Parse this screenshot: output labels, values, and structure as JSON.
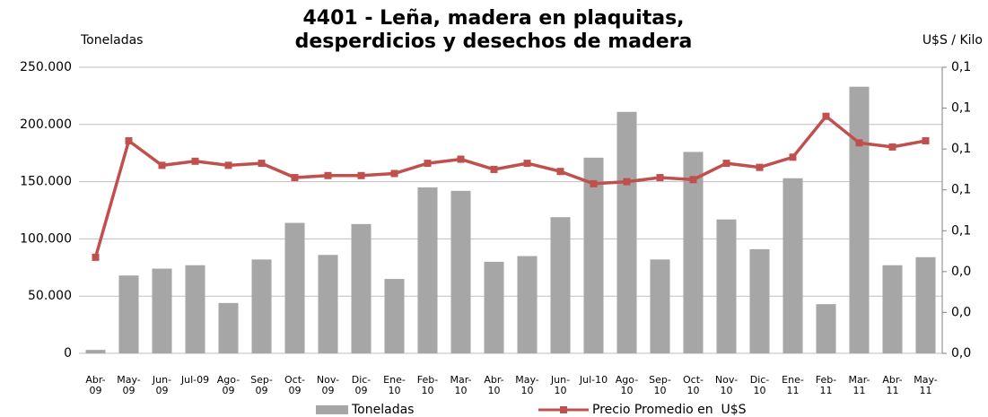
{
  "chart_data": {
    "type": "bar",
    "title": "4401 - Leña, madera en plaquitas, desperdicios y desechos de madera",
    "y_label": "Toneladas",
    "y2_label": "U$S / Kilo",
    "categories": [
      "Abr-09",
      "May-09",
      "Jun-09",
      "Jul-09",
      "Ago-09",
      "Sep-09",
      "Oct-09",
      "Nov-09",
      "Dic-09",
      "Ene-10",
      "Feb-10",
      "Mar-10",
      "Abr-10",
      "May-10",
      "Jun-10",
      "Jul-10",
      "Ago-10",
      "Sep-10",
      "Oct-10",
      "Nov-10",
      "Dic-10",
      "Ene-11",
      "Feb-11",
      "Mar-11",
      "Abr-11",
      "May-11"
    ],
    "series": [
      {
        "name": "Toneladas",
        "type": "bar",
        "color": "#a6a6a6",
        "values": [
          3000,
          68000,
          74000,
          77000,
          44000,
          82000,
          114000,
          86000,
          113000,
          65000,
          145000,
          142000,
          80000,
          85000,
          119000,
          171000,
          211000,
          82000,
          176000,
          117000,
          91000,
          153000,
          43000,
          233000,
          77000,
          84000
        ]
      },
      {
        "name": "Precio Promedio en  U$S",
        "type": "line",
        "axis": "y2",
        "color": "#c0504d",
        "values": [
          0.047,
          0.104,
          0.092,
          0.094,
          0.092,
          0.093,
          0.086,
          0.087,
          0.087,
          0.088,
          0.093,
          0.095,
          0.09,
          0.093,
          0.089,
          0.083,
          0.084,
          0.086,
          0.085,
          0.093,
          0.091,
          0.096,
          0.116,
          0.103,
          0.101,
          0.104
        ]
      }
    ],
    "ylim": [
      0,
      250000
    ],
    "yticks": [
      {
        "value": 0,
        "label": "0"
      },
      {
        "value": 50000,
        "label": "50.000"
      },
      {
        "value": 100000,
        "label": "100.000"
      },
      {
        "value": 150000,
        "label": "150.000"
      },
      {
        "value": 200000,
        "label": "200.000"
      },
      {
        "value": 250000,
        "label": "250.000"
      }
    ],
    "y2lim": [
      0,
      0.14
    ],
    "y2ticks": [
      {
        "value": 0,
        "label": "0,0"
      },
      {
        "value": 0.02,
        "label": "0,0"
      },
      {
        "value": 0.04,
        "label": "0,0"
      },
      {
        "value": 0.06,
        "label": "0,1"
      },
      {
        "value": 0.08,
        "label": "0,1"
      },
      {
        "value": 0.1,
        "label": "0,1"
      },
      {
        "value": 0.12,
        "label": "0,1"
      },
      {
        "value": 0.14,
        "label": "0,1"
      }
    ],
    "grid": true,
    "legend": "bottom"
  }
}
